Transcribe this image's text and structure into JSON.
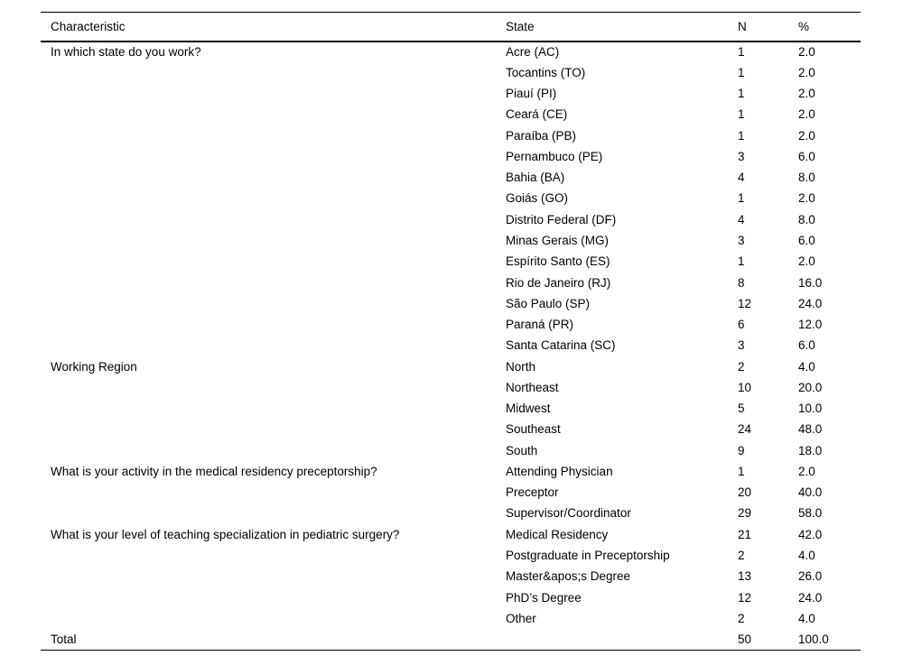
{
  "table": {
    "columns": [
      "Characteristic",
      "State",
      "N",
      "%"
    ],
    "rows": [
      {
        "characteristic": "In which state do you work?",
        "state": "Acre (AC)",
        "n": "1",
        "pct": "2.0"
      },
      {
        "characteristic": "",
        "state": "Tocantins (TO)",
        "n": "1",
        "pct": "2.0"
      },
      {
        "characteristic": "",
        "state": "Piauí (PI)",
        "n": "1",
        "pct": "2.0"
      },
      {
        "characteristic": "",
        "state": "Ceará (CE)",
        "n": "1",
        "pct": "2.0"
      },
      {
        "characteristic": "",
        "state": "Paraíba (PB)",
        "n": "1",
        "pct": "2.0"
      },
      {
        "characteristic": "",
        "state": "Pernambuco (PE)",
        "n": "3",
        "pct": "6.0"
      },
      {
        "characteristic": "",
        "state": "Bahia (BA)",
        "n": "4",
        "pct": "8.0"
      },
      {
        "characteristic": "",
        "state": "Goiás (GO)",
        "n": "1",
        "pct": "2.0"
      },
      {
        "characteristic": "",
        "state": "Distrito Federal (DF)",
        "n": "4",
        "pct": "8.0"
      },
      {
        "characteristic": "",
        "state": "Minas Gerais (MG)",
        "n": "3",
        "pct": "6.0"
      },
      {
        "characteristic": "",
        "state": "Espírito Santo (ES)",
        "n": "1",
        "pct": "2.0"
      },
      {
        "characteristic": "",
        "state": "Rio de Janeiro (RJ)",
        "n": "8",
        "pct": "16.0"
      },
      {
        "characteristic": "",
        "state": "São Paulo (SP)",
        "n": "12",
        "pct": "24.0"
      },
      {
        "characteristic": "",
        "state": "Paraná (PR)",
        "n": "6",
        "pct": "12.0"
      },
      {
        "characteristic": "",
        "state": "Santa Catarina (SC)",
        "n": "3",
        "pct": "6.0"
      },
      {
        "characteristic": "Working Region",
        "state": "North",
        "n": "2",
        "pct": "4.0"
      },
      {
        "characteristic": "",
        "state": "Northeast",
        "n": "10",
        "pct": "20.0"
      },
      {
        "characteristic": "",
        "state": "Midwest",
        "n": "5",
        "pct": "10.0"
      },
      {
        "characteristic": "",
        "state": "Southeast",
        "n": "24",
        "pct": "48.0"
      },
      {
        "characteristic": "",
        "state": "South",
        "n": "9",
        "pct": "18.0"
      },
      {
        "characteristic": "What is your activity in the medical residency preceptorship?",
        "state": "Attending Physician",
        "n": "1",
        "pct": "2.0"
      },
      {
        "characteristic": "",
        "state": "Preceptor",
        "n": "20",
        "pct": "40.0"
      },
      {
        "characteristic": "",
        "state": "Supervisor/Coordinator",
        "n": "29",
        "pct": "58.0"
      },
      {
        "characteristic": "What is your level of teaching specialization in pediatric surgery?",
        "state": "Medical Residency",
        "n": "21",
        "pct": "42.0"
      },
      {
        "characteristic": "",
        "state": "Postgraduate in Preceptorship",
        "n": "2",
        "pct": "4.0"
      },
      {
        "characteristic": "",
        "state": "Master&apos;s Degree",
        "n": "13",
        "pct": "26.0"
      },
      {
        "characteristic": "",
        "state": "PhD’s Degree",
        "n": "12",
        "pct": "24.0"
      },
      {
        "characteristic": "",
        "state": "Other",
        "n": "2",
        "pct": "4.0"
      },
      {
        "characteristic": "Total",
        "state": "",
        "n": "50",
        "pct": "100.0"
      }
    ]
  }
}
